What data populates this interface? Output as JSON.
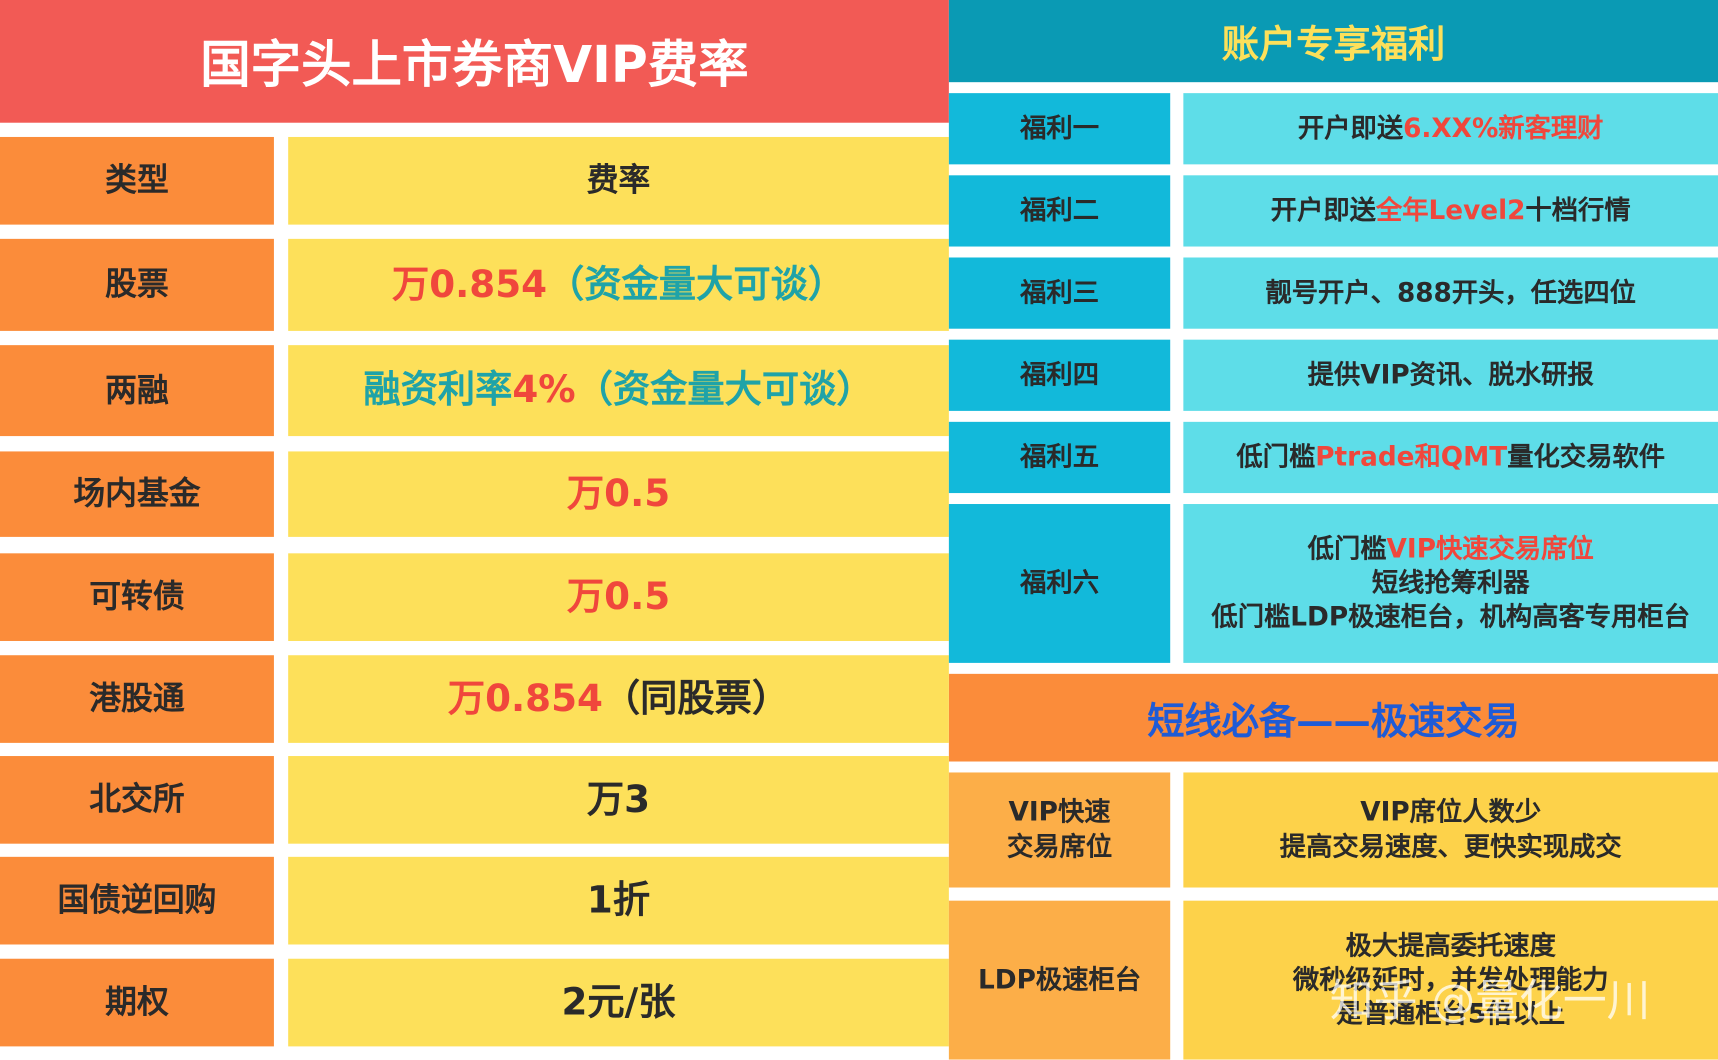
{
  "left_table": {
    "title": "国字头上市券商VIP费率",
    "rows": [
      {
        "label": "类型",
        "value": [
          [
            {
              "text": "费率",
              "color": "#2a2a2a"
            }
          ]
        ]
      },
      {
        "label": "股票",
        "value": [
          [
            {
              "text": "万0.854",
              "color": "#f0473c"
            },
            {
              "text": "（资金量大可谈）",
              "color": "#1fa3a8"
            }
          ]
        ]
      },
      {
        "label": "两融",
        "value": [
          [
            {
              "text": "融资利率",
              "color": "#1fa3a8"
            },
            {
              "text": "4%",
              "color": "#f0473c"
            },
            {
              "text": "（资金量大可谈）",
              "color": "#1fa3a8"
            }
          ]
        ]
      },
      {
        "label": "场内基金",
        "value": [
          [
            {
              "text": "万0.5",
              "color": "#f0473c"
            }
          ]
        ]
      },
      {
        "label": "可转债",
        "value": [
          [
            {
              "text": "万0.5",
              "color": "#f0473c"
            }
          ]
        ]
      },
      {
        "label": "港股通",
        "value": [
          [
            {
              "text": "万0.854",
              "color": "#f0473c"
            },
            {
              "text": "（同股票）",
              "color": "#2a2a2a"
            }
          ]
        ]
      },
      {
        "label": "北交所",
        "value": [
          [
            {
              "text": "万3",
              "color": "#2a2a2a"
            }
          ]
        ]
      },
      {
        "label": "国债逆回购",
        "value": [
          [
            {
              "text": "1折",
              "color": "#2a2a2a"
            }
          ]
        ]
      },
      {
        "label": "期权",
        "value": [
          [
            {
              "text": "2元/张",
              "color": "#2a2a2a"
            }
          ]
        ]
      }
    ]
  },
  "right_panel": {
    "title": "账户专享福利",
    "benefits": [
      {
        "label": [
          "福利一"
        ],
        "value": [
          [
            {
              "text": "开户即送",
              "color": "#2a2a2a"
            },
            {
              "text": "6.XX%新客理财",
              "color": "#f0473c"
            }
          ]
        ]
      },
      {
        "label": [
          "福利二"
        ],
        "value": [
          [
            {
              "text": "开户即送",
              "color": "#2a2a2a"
            },
            {
              "text": "全年Level2",
              "color": "#f0473c"
            },
            {
              "text": "十档行情",
              "color": "#2a2a2a"
            }
          ]
        ]
      },
      {
        "label": [
          "福利三"
        ],
        "value": [
          [
            {
              "text": "靓号开户、888开头，任选四位",
              "color": "#2a2a2a"
            }
          ]
        ]
      },
      {
        "label": [
          "福利四"
        ],
        "value": [
          [
            {
              "text": "提供VIP资讯、脱水研报",
              "color": "#2a2a2a"
            }
          ]
        ]
      },
      {
        "label": [
          "福利五"
        ],
        "value": [
          [
            {
              "text": "低门槛",
              "color": "#2a2a2a"
            },
            {
              "text": "Ptrade和QMT",
              "color": "#f0473c"
            },
            {
              "text": "量化交易软件",
              "color": "#2a2a2a"
            }
          ]
        ]
      },
      {
        "label": [
          "福利六"
        ],
        "value": [
          [
            {
              "text": "低门槛",
              "color": "#2a2a2a"
            },
            {
              "text": "VIP快速交易席位",
              "color": "#f0473c"
            }
          ],
          [
            {
              "text": "短线抢筹利器",
              "color": "#2a2a2a"
            }
          ],
          [
            {
              "text": "低门槛LDP极速柜台，机构高客专用柜台",
              "color": "#2a2a2a"
            }
          ]
        ]
      }
    ],
    "section_title": "短线必备——极速交易",
    "fast_trade": [
      {
        "label": [
          "VIP快速",
          "交易席位"
        ],
        "value": [
          [
            {
              "text": "VIP席位人数少",
              "color": "#2a2a2a"
            }
          ],
          [
            {
              "text": "提高交易速度、更快实现成交",
              "color": "#2a2a2a"
            }
          ]
        ]
      },
      {
        "label": [
          "LDP极速柜台"
        ],
        "value": [
          [
            {
              "text": "极大提高委托速度",
              "color": "#2a2a2a"
            }
          ],
          [
            {
              "text": "微秒级延时，并发处理能力",
              "color": "#2a2a2a"
            }
          ],
          [
            {
              "text": "是普通柜台5倍以上",
              "color": "#2a2a2a"
            }
          ]
        ]
      }
    ]
  },
  "watermark": "知乎 @量化一川"
}
